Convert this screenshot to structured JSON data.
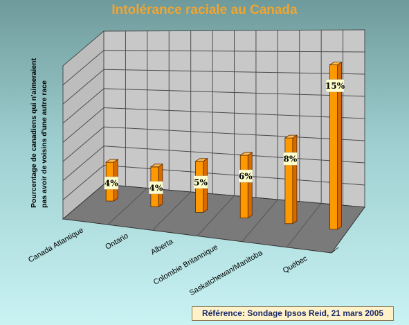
{
  "chart_data": {
    "type": "bar",
    "title": "Intolérance raciale au Canada",
    "ylabel_lines": [
      "Pourcentage de canadiens qui n'aimeraient",
      "pas avoir de voisins d'une autre race"
    ],
    "xlabel": "",
    "categories": [
      "Canada Atlantique",
      "Ontario",
      "Alberta",
      "Colombie Britannique",
      "Saskatchewan/Manitoba",
      "Québec"
    ],
    "values": [
      4,
      4,
      5,
      6,
      8,
      15
    ],
    "value_labels": [
      "4%",
      "4%",
      "5%",
      "6%",
      "8%",
      "15%"
    ],
    "ylim": [
      0,
      16
    ],
    "grid": true,
    "style": "3d-bar",
    "colors": {
      "bar": "#ff9900",
      "bar_side": "#d86a00",
      "bar_top": "#ffbb55",
      "label_bg": "#ffffcc"
    }
  },
  "reference": "Référence: Sondage Ipsos Reid, 21 mars 2005"
}
